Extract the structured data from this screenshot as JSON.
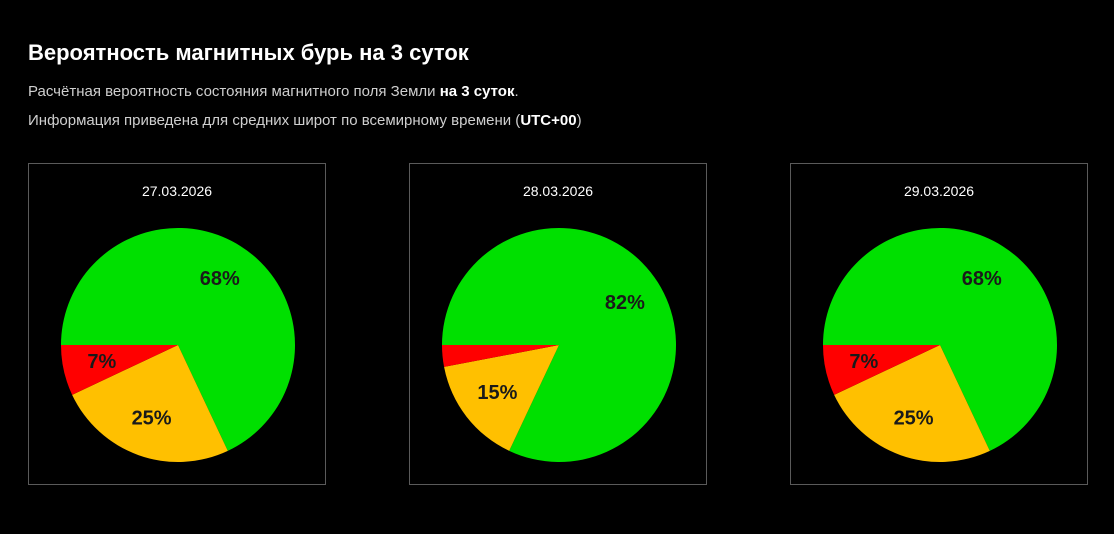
{
  "header": {
    "title": "Вероятность магнитных бурь на 3 суток",
    "line1_text": "Расчётная вероятность состояния магнитного поля Земли ",
    "line1_bold": "на 3 суток",
    "line1_end": ".",
    "line2_text": "Информация приведена для средних широт по всемирному времени (",
    "line2_bold": "UTC+00",
    "line2_end": ")"
  },
  "colors": {
    "calm": "#00e000",
    "disturbed": "#ffc000",
    "storm": "#ff0000",
    "background": "#000000",
    "border": "#5a5a5a",
    "label": "#1a1a1a"
  },
  "chart_data": [
    {
      "type": "pie",
      "title": "27.03.2026",
      "slices": [
        {
          "value": 68,
          "label": "68%",
          "color": "#00e000"
        },
        {
          "value": 25,
          "label": "25%",
          "color": "#ffc000"
        },
        {
          "value": 7,
          "label": "7%",
          "color": "#ff0000"
        }
      ]
    },
    {
      "type": "pie",
      "title": "28.03.2026",
      "slices": [
        {
          "value": 82,
          "label": "82%",
          "color": "#00e000"
        },
        {
          "value": 15,
          "label": "15%",
          "color": "#ffc000"
        },
        {
          "value": 3,
          "label": "",
          "color": "#ff0000"
        }
      ]
    },
    {
      "type": "pie",
      "title": "29.03.2026",
      "slices": [
        {
          "value": 68,
          "label": "68%",
          "color": "#00e000"
        },
        {
          "value": 25,
          "label": "25%",
          "color": "#ffc000"
        },
        {
          "value": 7,
          "label": "7%",
          "color": "#ff0000"
        }
      ]
    }
  ]
}
